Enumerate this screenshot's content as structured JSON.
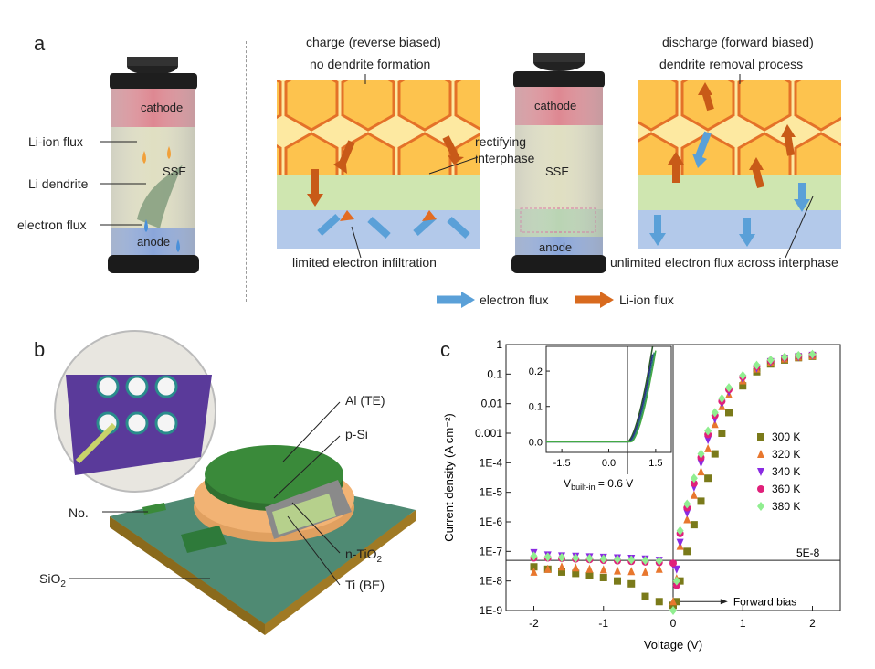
{
  "panels": {
    "a": "a",
    "b": "b",
    "c": "c"
  },
  "panel_a": {
    "battery_left": {
      "cathode": "cathode",
      "sse": "SSE",
      "anode": "anode"
    },
    "left_labels": [
      "Li-ion flux",
      "Li dendrite",
      "electron flux"
    ],
    "charge_title": "charge (reverse biased)",
    "charge_sub": "no dendrite formation",
    "charge_bottom": "limited electron infiltration",
    "rectifying": "rectifying\ninterphase",
    "battery_mid": {
      "cathode": "cathode",
      "sse": "SSE",
      "anode": "anode"
    },
    "discharge_title": "discharge (forward biased)",
    "discharge_sub": "dendrite removal process",
    "discharge_bottom": "unlimited electron flux across interphase",
    "legend": {
      "electron": "electron flux",
      "liion": "Li-ion flux"
    }
  },
  "panel_b": {
    "labels": {
      "al": "Al (TE)",
      "psi": "p-Si",
      "ntio2_main": "n-TiO",
      "ntio2_sub": "2",
      "ti": "Ti (BE)",
      "no": "No.",
      "sio2_main": "SiO",
      "sio2_sub": "2"
    }
  },
  "colors": {
    "orange": "#e8772e",
    "purple": "#8a2be2",
    "pink": "#e0207a",
    "green": "#90ee90",
    "olive": "#7a7a1a",
    "electron_blue": "#5aa0d8",
    "liion_orange": "#d86a1e"
  },
  "chart_data": {
    "type": "scatter",
    "xlabel": "Voltage (V)",
    "ylabel": "Current density (A cm⁻²)",
    "xlim": [
      -2.4,
      2.4
    ],
    "ylim_log": [
      1e-09,
      1
    ],
    "y_scale": "log",
    "xticks": [
      "-2",
      "-1",
      "0",
      "1",
      "2"
    ],
    "yticks": [
      "1E-9",
      "1E-8",
      "1E-7",
      "1E-6",
      "1E-5",
      "1E-4",
      "0.001",
      "0.01",
      "0.1",
      "1"
    ],
    "threshold_label": "5E-8",
    "threshold_value": 5e-08,
    "annotation": "Forward bias",
    "legend_position": "right",
    "series": [
      {
        "name": "300 K",
        "color": "#7a7a1a",
        "marker": "square",
        "x": [
          -2.0,
          -1.8,
          -1.6,
          -1.4,
          -1.2,
          -1.0,
          -0.8,
          -0.6,
          -0.4,
          -0.2,
          0.0,
          0.05,
          0.1,
          0.2,
          0.3,
          0.4,
          0.5,
          0.6,
          0.7,
          0.8,
          1.0,
          1.2,
          1.4,
          1.6,
          1.8,
          2.0
        ],
        "y": [
          3e-08,
          2.5e-08,
          2e-08,
          1.8e-08,
          1.5e-08,
          1.3e-08,
          1e-08,
          8e-09,
          3e-09,
          2e-09,
          1.5e-09,
          2e-09,
          1e-08,
          1e-07,
          8e-07,
          5e-06,
          3e-05,
          0.0002,
          0.001,
          0.005,
          0.04,
          0.12,
          0.22,
          0.3,
          0.36,
          0.4
        ]
      },
      {
        "name": "320 K",
        "color": "#e8772e",
        "marker": "triangle-up",
        "x": [
          -2.0,
          -1.8,
          -1.6,
          -1.4,
          -1.2,
          -1.0,
          -0.8,
          -0.6,
          -0.4,
          -0.2,
          0.0,
          0.05,
          0.1,
          0.2,
          0.3,
          0.4,
          0.5,
          0.6,
          0.7,
          0.8,
          1.0,
          1.2,
          1.4,
          1.6,
          1.8,
          2.0
        ],
        "y": [
          2e-08,
          2.5e-08,
          3e-08,
          2.8e-08,
          2.5e-08,
          2.4e-08,
          2.2e-08,
          2.1e-08,
          2e-08,
          2.5e-08,
          2e-09,
          1.2e-08,
          1.5e-07,
          1.2e-06,
          8e-06,
          5e-05,
          0.0003,
          0.002,
          0.008,
          0.02,
          0.06,
          0.15,
          0.25,
          0.33,
          0.38,
          0.42
        ]
      },
      {
        "name": "340 K",
        "color": "#8a2be2",
        "marker": "triangle-down",
        "x": [
          -2.0,
          -1.8,
          -1.6,
          -1.4,
          -1.2,
          -1.0,
          -0.8,
          -0.6,
          -0.4,
          -0.2,
          0.0,
          0.05,
          0.1,
          0.2,
          0.3,
          0.4,
          0.5,
          0.6,
          0.7,
          0.8,
          1.0,
          1.2,
          1.4,
          1.6,
          1.8,
          2.0
        ],
        "y": [
          9e-08,
          7.5e-08,
          7e-08,
          6.8e-08,
          6.5e-08,
          6.3e-08,
          6e-08,
          5.8e-08,
          5.5e-08,
          5e-08,
          3.5e-08,
          2.5e-08,
          2e-07,
          2e-06,
          1.5e-05,
          0.0001,
          0.0006,
          0.003,
          0.01,
          0.025,
          0.07,
          0.16,
          0.26,
          0.34,
          0.39,
          0.43
        ]
      },
      {
        "name": "360 K",
        "color": "#e0207a",
        "marker": "circle",
        "x": [
          -2.0,
          -1.8,
          -1.6,
          -1.4,
          -1.2,
          -1.0,
          -0.8,
          -0.6,
          -0.4,
          -0.2,
          0.0,
          0.05,
          0.1,
          0.2,
          0.3,
          0.4,
          0.5,
          0.6,
          0.7,
          0.8,
          1.0,
          1.2,
          1.4,
          1.6,
          1.8,
          2.0
        ],
        "y": [
          6e-08,
          6e-08,
          5.8e-08,
          5.5e-08,
          5.3e-08,
          5e-08,
          4.8e-08,
          4.6e-08,
          4.4e-08,
          4.2e-08,
          4e-08,
          7e-09,
          4e-07,
          3e-06,
          2e-05,
          0.00015,
          0.0009,
          0.004,
          0.012,
          0.03,
          0.08,
          0.18,
          0.28,
          0.36,
          0.41,
          0.45
        ]
      },
      {
        "name": "380 K",
        "color": "#90ee90",
        "marker": "diamond",
        "x": [
          -2.0,
          -1.8,
          -1.6,
          -1.4,
          -1.2,
          -1.0,
          -0.8,
          -0.6,
          -0.4,
          -0.2,
          0.0,
          0.05,
          0.1,
          0.2,
          0.3,
          0.4,
          0.5,
          0.6,
          0.7,
          0.8,
          1.0,
          1.2,
          1.4,
          1.6,
          1.8,
          2.0
        ],
        "y": [
          7e-08,
          6.5e-08,
          6.2e-08,
          6e-08,
          5.8e-08,
          5.6e-08,
          5.4e-08,
          5.2e-08,
          5e-08,
          4.8e-08,
          1e-09,
          1e-08,
          5e-07,
          4e-06,
          3e-05,
          0.0002,
          0.0012,
          0.005,
          0.015,
          0.035,
          0.09,
          0.2,
          0.3,
          0.38,
          0.43,
          0.47
        ]
      }
    ],
    "inset": {
      "xticks": [
        "-1.5",
        "0.0",
        "1.5"
      ],
      "yticks": [
        "0.0",
        "0.1",
        "0.2"
      ],
      "xlim": [
        -2.0,
        2.0
      ],
      "ylim": [
        -0.03,
        0.27
      ],
      "annotation_main": "V",
      "annotation_sub": "built-in",
      "annotation_value": " = 0.6 V",
      "vline": 0.6
    }
  }
}
